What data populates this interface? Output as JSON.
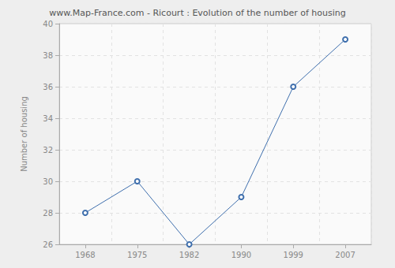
{
  "chart_data": {
    "type": "line",
    "title": "www.Map-France.com - Ricourt : Evolution of the number of housing",
    "y_label": "Number of housing",
    "categories": [
      "1968",
      "1975",
      "1982",
      "1990",
      "1999",
      "2007"
    ],
    "values": [
      28,
      30,
      26,
      29,
      36,
      39
    ],
    "color": "#3f6fad",
    "marker": "circle",
    "ylim": [
      26,
      40
    ],
    "yticks": [
      26,
      28,
      30,
      32,
      34,
      36,
      38,
      40
    ],
    "grid": true
  }
}
